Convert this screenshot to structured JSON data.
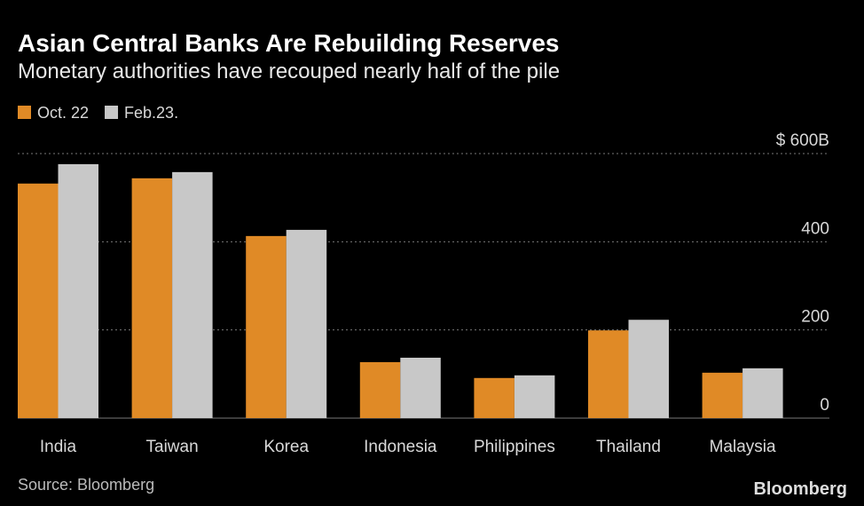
{
  "chart_data": {
    "type": "bar",
    "title": "Asian Central Banks Are Rebuilding Reserves",
    "subtitle": "Monetary authorities have recouped nearly half of the pile",
    "categories": [
      "India",
      "Taiwan",
      "Korea",
      "Indonesia",
      "Philippines",
      "Thailand",
      "Malaysia"
    ],
    "series": [
      {
        "name": "Oct. 22",
        "color": "#e08a26",
        "values": [
          532,
          544,
          413,
          127,
          91,
          199,
          103
        ]
      },
      {
        "name": "Feb.23.",
        "color": "#c8c8c8",
        "values": [
          576,
          558,
          427,
          137,
          97,
          223,
          113
        ]
      }
    ],
    "ylim": [
      0,
      600
    ],
    "yticks": [
      0,
      200,
      400,
      {
        "value": 600,
        "label": "$ 600B"
      }
    ],
    "grid": true,
    "source": "Source: Bloomberg",
    "logo": "Bloomberg"
  }
}
